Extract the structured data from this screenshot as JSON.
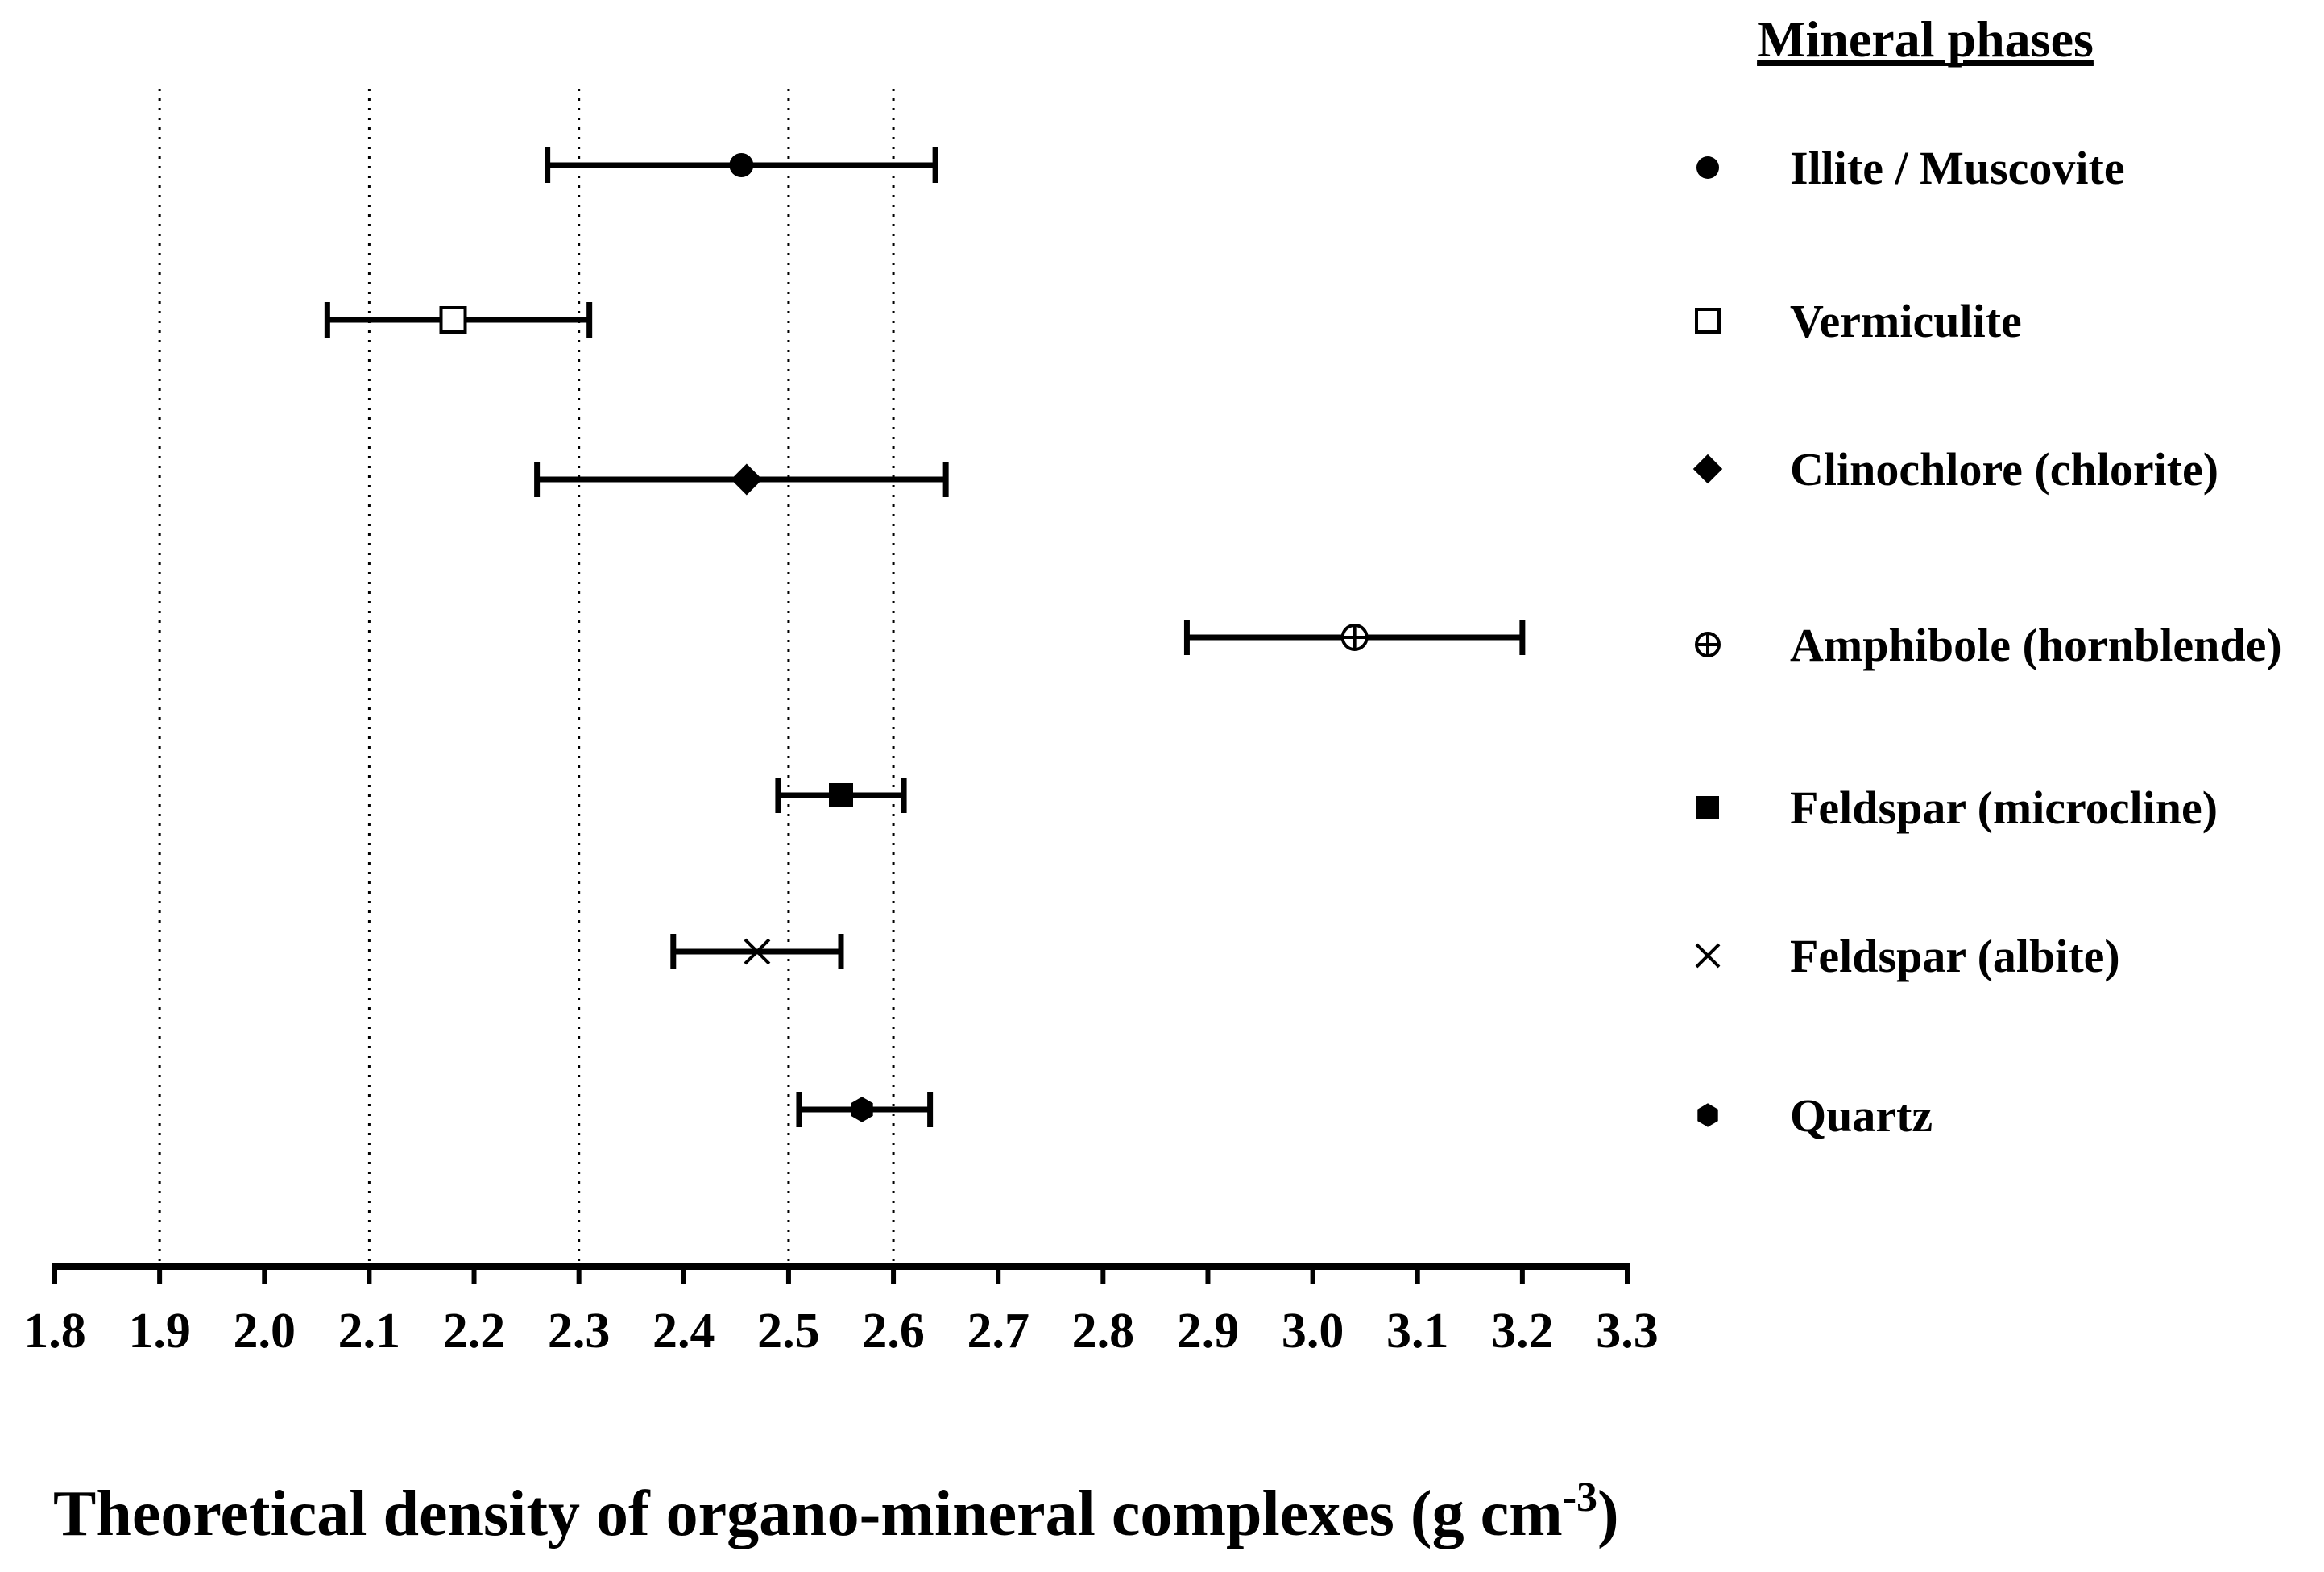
{
  "chart_data": {
    "type": "scatter",
    "orientation": "horizontal-error-bars",
    "title": "",
    "xlabel_main": "Theoretical density of organo-mineral complexes (g cm",
    "xlabel_superscript": "-3",
    "xlabel_close": ")",
    "ylabel": "",
    "xlim": [
      1.8,
      3.3
    ],
    "x_ticks": [
      1.8,
      1.9,
      2.0,
      2.1,
      2.2,
      2.3,
      2.4,
      2.5,
      2.6,
      2.7,
      2.8,
      2.9,
      3.0,
      3.1,
      3.2,
      3.3
    ],
    "x_tick_labels": [
      "1.8",
      "1.9",
      "2.0",
      "2.1",
      "2.2",
      "2.3",
      "2.4",
      "2.5",
      "2.6",
      "2.7",
      "2.8",
      "2.9",
      "3.0",
      "3.1",
      "3.2",
      "3.3"
    ],
    "gridlines_x": [
      1.9,
      2.1,
      2.3,
      2.5,
      2.6
    ],
    "grid_style": "dotted vertical",
    "legend_title": "Mineral phases",
    "legend_position": "right",
    "series": [
      {
        "name": "Illite / Muscovite",
        "marker": "filled-circle",
        "value": 2.455,
        "low": 2.27,
        "high": 2.64
      },
      {
        "name": "Vermiculite",
        "marker": "open-square",
        "value": 2.18,
        "low": 2.06,
        "high": 2.31
      },
      {
        "name": "Clinochlore (chlorite)",
        "marker": "filled-diamond",
        "value": 2.46,
        "low": 2.26,
        "high": 2.65
      },
      {
        "name": "Amphibole (hornblende)",
        "marker": "circle-plus",
        "value": 3.04,
        "low": 2.88,
        "high": 3.2
      },
      {
        "name": "Feldspar (microcline)",
        "marker": "filled-square",
        "value": 2.55,
        "low": 2.49,
        "high": 2.61
      },
      {
        "name": "Feldspar (albite)",
        "marker": "x-cross",
        "value": 2.47,
        "low": 2.39,
        "high": 2.55
      },
      {
        "name": "Quartz",
        "marker": "filled-hexagon",
        "value": 2.57,
        "low": 2.51,
        "high": 2.635
      }
    ],
    "colors": {
      "ink": "#000000",
      "background": "#ffffff"
    }
  }
}
